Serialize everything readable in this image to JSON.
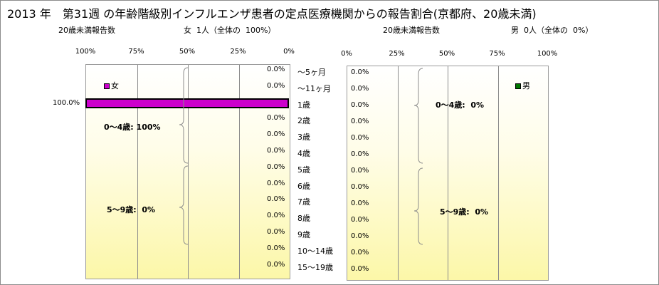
{
  "title": "2013 年　第31週 の年齢階級別インフルエンザ患者の定点医療機関からの報告割合(京都府、20歳未満)",
  "left_header": {
    "label": "20歳未満報告数",
    "summary": "女  1人（全体の  100%）"
  },
  "right_header": {
    "label": "20歳未満報告数",
    "summary": "男  0人（全体の  0%）"
  },
  "chart_data": [
    {
      "type": "bar",
      "orientation": "horizontal",
      "direction": "reversed",
      "categories": [
        "～5ヶ月",
        "～11ヶ月",
        "1歳",
        "2歳",
        "3歳",
        "4歳",
        "5歳",
        "6歳",
        "7歳",
        "8歳",
        "9歳",
        "10～14歳",
        "15～19歳"
      ],
      "series": [
        {
          "name": "女",
          "values": [
            0,
            0,
            100,
            0,
            0,
            0,
            0,
            0,
            0,
            0,
            0,
            0,
            0
          ],
          "color": "#cc00cc"
        }
      ],
      "value_labels": [
        "0.0%",
        "0.0%",
        "100.0%",
        "0.0%",
        "0.0%",
        "0.0%",
        "0.0%",
        "0.0%",
        "0.0%",
        "0.0%",
        "0.0%",
        "0.0%",
        "0.0%"
      ],
      "xlim": [
        0,
        100
      ],
      "ticks": [
        "100%",
        "75%",
        "50%",
        "25%",
        "0%"
      ],
      "legend": "女",
      "legend_placement": "top-left",
      "grid": true,
      "groups": [
        {
          "label": "0～4歳: 100%",
          "range": [
            "～5ヶ月",
            "4歳"
          ]
        },
        {
          "label": "5～9歳:  0%",
          "range": [
            "5歳",
            "9歳"
          ]
        }
      ]
    },
    {
      "type": "bar",
      "orientation": "horizontal",
      "categories": [
        "～5ヶ月",
        "～11ヶ月",
        "1歳",
        "2歳",
        "3歳",
        "4歳",
        "5歳",
        "6歳",
        "7歳",
        "8歳",
        "9歳",
        "10～14歳",
        "15～19歳"
      ],
      "series": [
        {
          "name": "男",
          "values": [
            0,
            0,
            0,
            0,
            0,
            0,
            0,
            0,
            0,
            0,
            0,
            0,
            0
          ],
          "color": "#007700"
        }
      ],
      "value_labels": [
        "0.0%",
        "0.0%",
        "0.0%",
        "0.0%",
        "0.0%",
        "0.0%",
        "0.0%",
        "0.0%",
        "0.0%",
        "0.0%",
        "0.0%",
        "0.0%",
        "0.0%"
      ],
      "xlim": [
        0,
        100
      ],
      "ticks": [
        "0%",
        "25%",
        "50%",
        "75%",
        "100%"
      ],
      "legend": "男",
      "legend_placement": "top-right",
      "grid": true,
      "groups": [
        {
          "label": "0～4歳:  0%",
          "range": [
            "～5ヶ月",
            "4歳"
          ]
        },
        {
          "label": "5～9歳:  0%",
          "range": [
            "5歳",
            "9歳"
          ]
        }
      ]
    }
  ]
}
